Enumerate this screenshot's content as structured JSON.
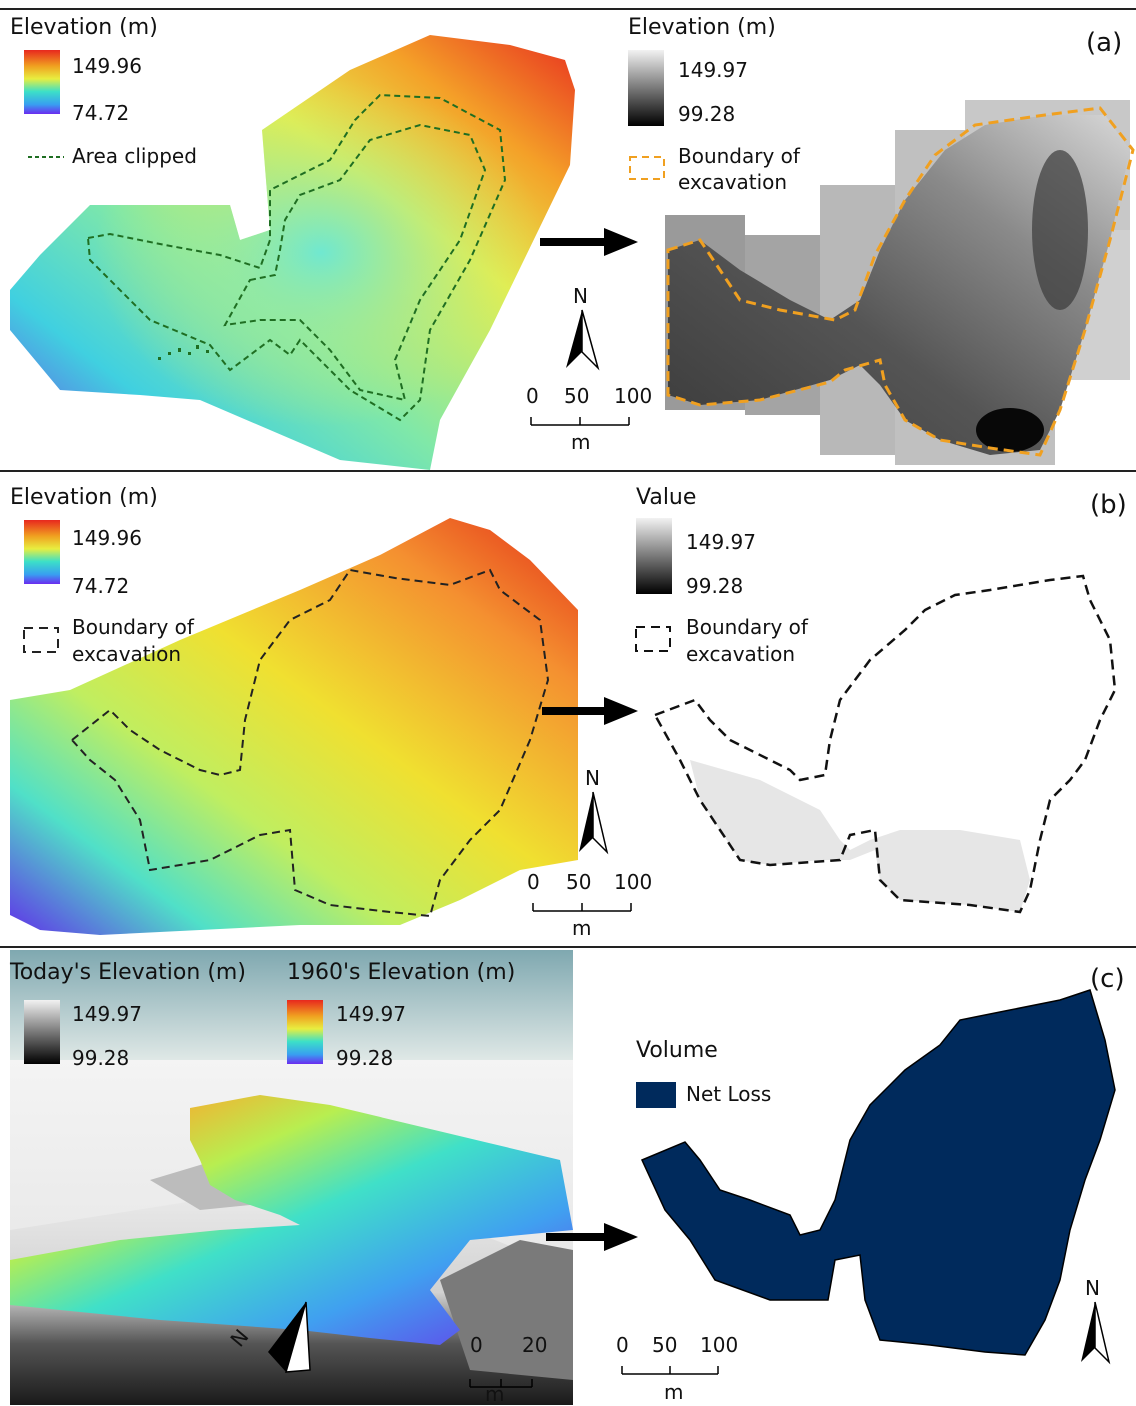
{
  "panel_a": {
    "letter": "(a)",
    "left_legend": {
      "title": "Elevation (m)",
      "max": "149.96",
      "min": "74.72",
      "line_label": "Area clipped"
    },
    "right_legend": {
      "title": "Elevation (m)",
      "max": "149.97",
      "min": "99.28",
      "boundary_label_1": "Boundary of",
      "boundary_label_2": "excavation"
    },
    "scale": {
      "t0": "0",
      "t1": "50",
      "t2": "100",
      "unit": "m"
    },
    "north": "N"
  },
  "panel_b": {
    "letter": "(b)",
    "left_legend": {
      "title": "Elevation (m)",
      "max": "149.96",
      "min": "74.72",
      "boundary_label_1": "Boundary of",
      "boundary_label_2": "excavation"
    },
    "right_legend": {
      "title": "Value",
      "max": "149.97",
      "min": "99.28",
      "boundary_label_1": "Boundary of",
      "boundary_label_2": "excavation"
    },
    "scale": {
      "t0": "0",
      "t1": "50",
      "t2": "100",
      "unit": "m"
    },
    "north": "N"
  },
  "panel_c": {
    "letter": "(c)",
    "today_legend": {
      "title": "Today's Elevation (m)",
      "max": "149.97",
      "min": "99.28"
    },
    "sixties_legend": {
      "title": "1960's Elevation (m)",
      "max": "149.97",
      "min": "99.28"
    },
    "volume_legend": {
      "title": "Volume",
      "item": "Net Loss"
    },
    "scale_3d": {
      "t0": "0",
      "t1": "20",
      "unit": "m"
    },
    "scale": {
      "t0": "0",
      "t1": "50",
      "t2": "100",
      "unit": "m"
    },
    "north": "N",
    "north_3d": "N"
  },
  "colors": {
    "rainbow_top": "#e8281e",
    "rainbow_mid": "#3ce0c8",
    "rainbow_bottom": "#6a2cf0",
    "dashed_green": "#1f6e22",
    "dashed_orange": "#f0a020",
    "net_loss": "#002a5c"
  }
}
